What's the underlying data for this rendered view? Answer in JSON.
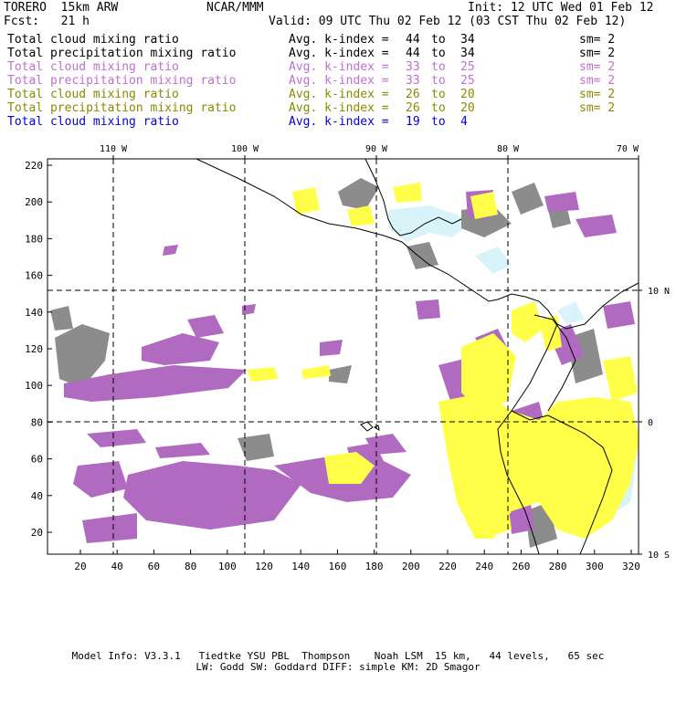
{
  "header": {
    "model": "TORERO  15km ARW",
    "org": "NCAR/MMM",
    "init": "Init: 12 UTC Wed 01 Feb 12",
    "fcst": "Fcst:   21 h",
    "valid": "Valid: 09 UTC Thu 02 Feb 12 (03 CST Thu 02 Feb 12)"
  },
  "legend": [
    {
      "field": "Total cloud mixing ratio",
      "kindex": "Avg. k-index =",
      "k1": "44",
      "to": "to",
      "k2": "34",
      "sm": "sm= 2",
      "color": "#000000"
    },
    {
      "field": "Total precipitation mixing ratio",
      "kindex": "Avg. k-index =",
      "k1": "44",
      "to": "to",
      "k2": "34",
      "sm": "sm= 2",
      "color": "#000000"
    },
    {
      "field": "Total cloud mixing ratio",
      "kindex": "Avg. k-index =",
      "k1": "33",
      "to": "to",
      "k2": "25",
      "sm": "sm= 2",
      "color": "#c070d0"
    },
    {
      "field": "Total precipitation mixing ratio",
      "kindex": "Avg. k-index =",
      "k1": "33",
      "to": "to",
      "k2": "25",
      "sm": "sm= 2",
      "color": "#c070d0"
    },
    {
      "field": "Total cloud mixing ratio",
      "kindex": "Avg. k-index =",
      "k1": "26",
      "to": "to",
      "k2": "20",
      "sm": "sm= 2",
      "color": "#8a8a00"
    },
    {
      "field": "Total precipitation mixing ratio",
      "kindex": "Avg. k-index =",
      "k1": "26",
      "to": "to",
      "k2": "20",
      "sm": "sm= 2",
      "color": "#8a8a00"
    },
    {
      "field": "Total cloud mixing ratio",
      "kindex": "Avg. k-index =",
      "k1": "19",
      "to": "to",
      "k2": "4",
      "sm": "",
      "color": "#0000e0"
    }
  ],
  "map": {
    "x_ticks": [
      "20",
      "40",
      "60",
      "80",
      "100",
      "120",
      "140",
      "160",
      "180",
      "200",
      "220",
      "240",
      "260",
      "280",
      "300",
      "320"
    ],
    "y_ticks": [
      "220",
      "200",
      "180",
      "160",
      "140",
      "120",
      "100",
      "80",
      "60",
      "40",
      "20"
    ],
    "lon_labels": [
      "110 W",
      "100 W",
      "90 W",
      "80 W",
      "70 W"
    ],
    "lat_labels": [
      "10 N",
      "0",
      "10 S"
    ],
    "colors": {
      "cloud_gray": "#8c8c8c",
      "purple": "#b06ac0",
      "yellow": "#ffff4a",
      "light_cyan": "#d8f4fa",
      "coast": "#000000"
    }
  },
  "footer": {
    "line1": "Model Info: V3.3.1   Tiedtke YSU PBL  Thompson    Noah LSM  15 km,   44 levels,   65 sec",
    "line2": "LW: Godd SW: Goddard DIFF: simple KM: 2D Smagor"
  }
}
